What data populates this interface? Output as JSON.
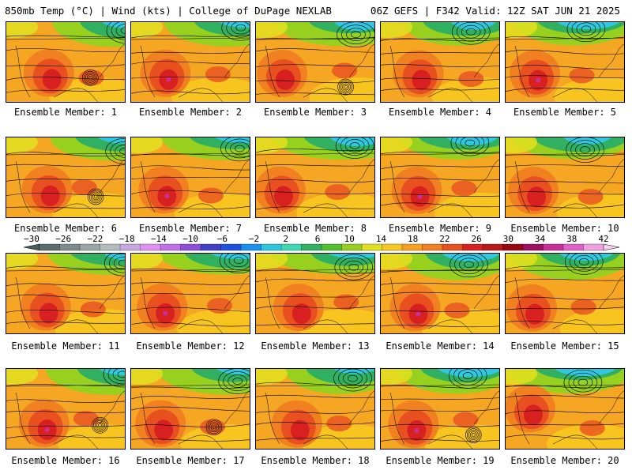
{
  "header": {
    "left": "850mb Temp (°C) | Wind (kts) | College of DuPage NEXLAB",
    "right": "06Z GEFS | F342 Valid: 12Z SAT JUN 21 2025"
  },
  "colorbar": {
    "ticks": [
      "−30",
      "−26",
      "−22",
      "−18",
      "−14",
      "−10",
      "−6",
      "−2",
      "2",
      "6",
      "10",
      "14",
      "18",
      "22",
      "26",
      "30",
      "34",
      "38",
      "42"
    ],
    "colors": [
      "#5a6e6e",
      "#7c8c8c",
      "#9aa6a6",
      "#b4bdbd",
      "#c8a8e0",
      "#e090f0",
      "#c070e8",
      "#8c50d8",
      "#4040c8",
      "#2050e0",
      "#1890f0",
      "#30c8e0",
      "#40d8b0",
      "#30b060",
      "#50c030",
      "#98d020",
      "#e0e020",
      "#f8c820",
      "#f8a020",
      "#f08020",
      "#e85020",
      "#d82020",
      "#b81818",
      "#980810",
      "#a01060",
      "#c83098",
      "#e060c8",
      "#f0a0e0"
    ]
  },
  "members": [
    {
      "label": "Ensemble Member: 1"
    },
    {
      "label": "Ensemble Member: 2"
    },
    {
      "label": "Ensemble Member: 3"
    },
    {
      "label": "Ensemble Member: 4"
    },
    {
      "label": "Ensemble Member: 5"
    },
    {
      "label": "Ensemble Member: 6"
    },
    {
      "label": "Ensemble Member: 7"
    },
    {
      "label": "Ensemble Member: 8"
    },
    {
      "label": "Ensemble Member: 9"
    },
    {
      "label": "Ensemble Member: 10"
    },
    {
      "label": "Ensemble Member: 11"
    },
    {
      "label": "Ensemble Member: 12"
    },
    {
      "label": "Ensemble Member: 13"
    },
    {
      "label": "Ensemble Member: 14"
    },
    {
      "label": "Ensemble Member: 15"
    },
    {
      "label": "Ensemble Member: 16"
    },
    {
      "label": "Ensemble Member: 17"
    },
    {
      "label": "Ensemble Member: 18"
    },
    {
      "label": "Ensemble Member: 19"
    },
    {
      "label": "Ensemble Member: 20"
    }
  ]
}
